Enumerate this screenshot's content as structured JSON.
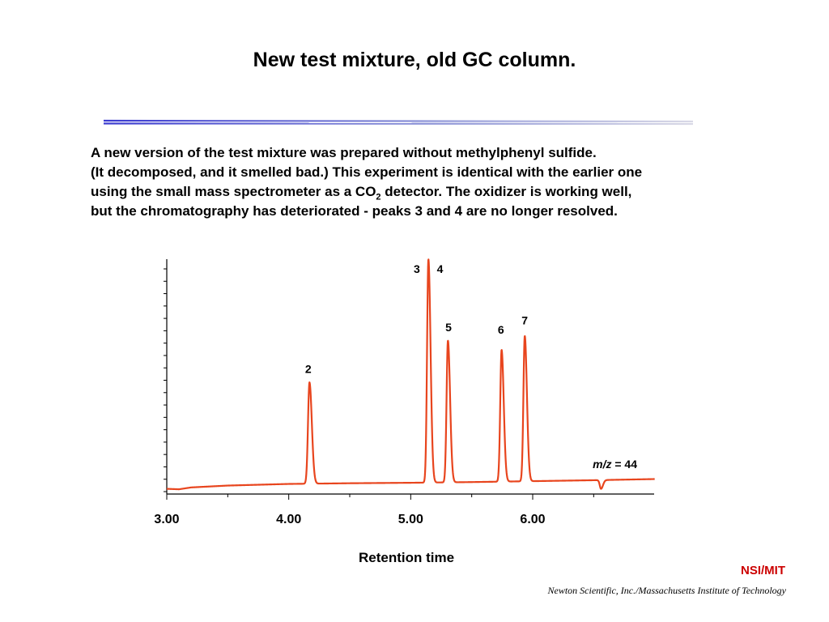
{
  "slide": {
    "title": "New test mixture, old GC column.",
    "description_lines": [
      "A new version of the test mixture was prepared without methylphenyl sulfide.",
      "(It decomposed, and it smelled bad.)  This experiment is identical with the earlier one",
      "using the small mass spectrometer as a CO",
      "2",
      " detector.   The oxidizer is working well,",
      "but the chromatography has deteriorated - peaks 3 and 4 are no longer resolved."
    ]
  },
  "chart_data": {
    "type": "line",
    "xlabel": "Retention time",
    "x_ticks": [
      "3.00",
      "4.00",
      "5.00",
      "6.00"
    ],
    "xlim": [
      3.0,
      7.0
    ],
    "ylim": [
      0,
      100
    ],
    "trace_label_italic": "m/z",
    "trace_label_rest": " = 44",
    "series": [
      {
        "color": "#e8451e",
        "baseline": [
          [
            3.0,
            1.2
          ],
          [
            3.1,
            1.0
          ],
          [
            3.2,
            1.8
          ],
          [
            3.5,
            2.6
          ],
          [
            4.0,
            3.3
          ],
          [
            4.5,
            3.6
          ],
          [
            5.0,
            3.8
          ],
          [
            5.5,
            4.1
          ],
          [
            6.0,
            4.5
          ],
          [
            6.5,
            4.9
          ],
          [
            7.0,
            5.4
          ]
        ],
        "peaks": [
          {
            "label": "2",
            "x": 4.17,
            "y": 47,
            "width": 0.012
          },
          {
            "label": "3",
            "x": 5.145,
            "y": 100,
            "width": 0.011
          },
          {
            "label": "5",
            "x": 5.305,
            "y": 65,
            "width": 0.011
          },
          {
            "label": "6",
            "x": 5.745,
            "y": 61,
            "width": 0.011
          },
          {
            "label": "7",
            "x": 5.935,
            "y": 67,
            "width": 0.011
          },
          {
            "label": "",
            "x": 6.56,
            "y": 1.2,
            "width": 0.01
          }
        ]
      }
    ],
    "peak_labels": [
      {
        "text": "2",
        "x": 4.16,
        "y": 51
      },
      {
        "text": "3",
        "x": 5.05,
        "y": 94
      },
      {
        "text": "4",
        "x": 5.24,
        "y": 94
      },
      {
        "text": "5",
        "x": 5.31,
        "y": 69
      },
      {
        "text": "6",
        "x": 5.74,
        "y": 68
      },
      {
        "text": "7",
        "x": 5.935,
        "y": 72
      }
    ]
  },
  "footer": {
    "brand": "NSI/MIT",
    "credit": "Newton Scientific, Inc./Massachusetts Institute of Technology"
  }
}
